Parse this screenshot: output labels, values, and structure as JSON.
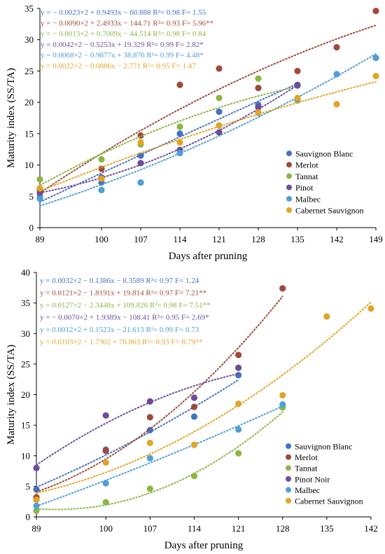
{
  "chart_data": [
    {
      "type": "scatter",
      "xlabel": "Days after pruning",
      "ylabel": "Maturity index  (SS/TA)",
      "x_ticks": [
        "89",
        "100",
        "107",
        "114",
        "121",
        "128",
        "135",
        "142",
        "149"
      ],
      "y_ticks": [
        "0",
        "5",
        "10",
        "15",
        "20",
        "25",
        "30",
        "35"
      ],
      "xlim": [
        89,
        149
      ],
      "ylim": [
        0,
        35
      ],
      "legend_position": "right",
      "series": [
        {
          "name": "Sauvignon Blanc",
          "color": "#4472C4",
          "equation": "y = − 0.0023×2 + 0.9493x − 60.888 R²= 0.98 F= 1.55",
          "trend_end": 135,
          "points": [
            [
              89,
              4.8
            ],
            [
              100,
              7.2
            ],
            [
              107,
              11.5
            ],
            [
              114,
              15.0
            ],
            [
              121,
              18.5
            ],
            [
              128,
              19.6
            ],
            [
              135,
              22.8
            ]
          ]
        },
        {
          "name": "Merlot",
          "color": "#9E4A3A",
          "equation": "y = − 0.0090×2 + 2.4933x − 144.71 R²= 0.93 F= 5.96**",
          "trend_end": 149,
          "points": [
            [
              89,
              6.0
            ],
            [
              100,
              9.4
            ],
            [
              107,
              14.7
            ],
            [
              114,
              22.8
            ],
            [
              121,
              25.4
            ],
            [
              128,
              22.3
            ],
            [
              135,
              25.0
            ],
            [
              142,
              28.8
            ],
            [
              149,
              34.6
            ]
          ]
        },
        {
          "name": "Tannat",
          "color": "#8DB543",
          "equation": "y = − 0.0013×2 + 0.7009x − 44.514 R²= 0.98 F= 0.84",
          "trend_end": 135,
          "points": [
            [
              89,
              7.7
            ],
            [
              100,
              10.9
            ],
            [
              107,
              13.3
            ],
            [
              114,
              16.1
            ],
            [
              121,
              20.7
            ],
            [
              128,
              23.8
            ],
            [
              135,
              20.3
            ]
          ]
        },
        {
          "name": "Pinot",
          "color": "#6F4C9B",
          "equation": "y = 0.0042×2 − 0.5253x + 19.329 R²= 0.99 F= 2.82*",
          "trend_end": 135,
          "points": [
            [
              89,
              5.5
            ],
            [
              100,
              8.0
            ],
            [
              107,
              10.3
            ],
            [
              114,
              12.4
            ],
            [
              121,
              15.2
            ],
            [
              128,
              19.2
            ],
            [
              135,
              22.7
            ]
          ]
        },
        {
          "name": "Malbec",
          "color": "#4E9FD6",
          "equation": "y = 0.0068×2 − 0.9877x + 38.876 R²= 0.99 F= 4.48*",
          "trend_end": 149,
          "points": [
            [
              89,
              4.6
            ],
            [
              100,
              6.0
            ],
            [
              107,
              7.2
            ],
            [
              114,
              11.9
            ],
            [
              121,
              16.3
            ],
            [
              128,
              18.3
            ],
            [
              135,
              20.5
            ],
            [
              142,
              24.5
            ],
            [
              149,
              27.1
            ]
          ]
        },
        {
          "name": "Cabernet Sauvignon",
          "color": "#E0A526",
          "equation": "y = 0.0022×2 − 0.0886x − 2.771 R²= 0.95 F= 1.47",
          "trend_end": 149,
          "points": [
            [
              89,
              6.3
            ],
            [
              100,
              7.8
            ],
            [
              107,
              13.6
            ],
            [
              114,
              13.6
            ],
            [
              121,
              16.3
            ],
            [
              128,
              18.4
            ],
            [
              135,
              20.7
            ],
            [
              142,
              19.7
            ],
            [
              149,
              24.2
            ]
          ]
        }
      ]
    },
    {
      "type": "scatter",
      "xlabel": "Days after pruning",
      "ylabel": "Maturity index  (SS/TA)",
      "x_ticks": [
        "89",
        "100",
        "107",
        "114",
        "121",
        "128",
        "135",
        "142"
      ],
      "y_ticks": [
        "0",
        "5",
        "10",
        "15",
        "20",
        "25",
        "30",
        "35",
        "40"
      ],
      "xlim": [
        89,
        142
      ],
      "ylim": [
        0,
        40
      ],
      "legend_position": "right",
      "series": [
        {
          "name": "Sauvignon Blanc",
          "color": "#4472C4",
          "equation": "y = 0.0032×2 − 0.1386x − 8.3589 R²= 0.97 F= 1.24",
          "trend_end": 121,
          "points": [
            [
              89,
              4.5
            ],
            [
              100,
              11.0
            ],
            [
              107,
              14.2
            ],
            [
              114,
              16.4
            ],
            [
              121,
              23.2
            ]
          ]
        },
        {
          "name": "Merlot",
          "color": "#9E4A3A",
          "equation": "y = 0.0121×2 − 1.8191x + 19.814 R²= 0.97 F= 7.21**",
          "trend_end": 128,
          "points": [
            [
              89,
              3.2
            ],
            [
              100,
              10.8
            ],
            [
              107,
              16.3
            ],
            [
              114,
              18.0
            ],
            [
              121,
              26.5
            ],
            [
              128,
              37.4
            ]
          ]
        },
        {
          "name": "Tannat",
          "color": "#8DB543",
          "equation": "y = 0.0127×2 − 2.3448x + 109.826 R²= 0.98 F= 7.51**",
          "trend_end": 128,
          "points": [
            [
              89,
              1.0
            ],
            [
              100,
              2.4
            ],
            [
              107,
              4.6
            ],
            [
              114,
              6.7
            ],
            [
              121,
              10.4
            ],
            [
              128,
              17.9
            ]
          ]
        },
        {
          "name": "Pinot Noir",
          "color": "#6F4C9B",
          "equation": "y = − 0.0070×2 + 1.9389x − 108.41 R²= 0.95 F= 2.69*",
          "trend_end": 121,
          "points": [
            [
              89,
              8.0
            ],
            [
              100,
              16.6
            ],
            [
              107,
              18.9
            ],
            [
              114,
              19.5
            ],
            [
              121,
              24.4
            ]
          ]
        },
        {
          "name": "Malbec",
          "color": "#4E9FD6",
          "equation": "y = 0.0012×2 + 0.1523x − 21.613 R²= 0.99 F= 0.73",
          "trend_end": 128,
          "points": [
            [
              89,
              1.8
            ],
            [
              100,
              5.5
            ],
            [
              107,
              9.6
            ],
            [
              114,
              11.8
            ],
            [
              121,
              14.3
            ],
            [
              128,
              18.4
            ]
          ]
        },
        {
          "name": "Cabernet Sauvignon",
          "color": "#E0A526",
          "equation": "y = 0.0103×2 − 1.7302 + 76.863 R²= 0.93 F= 8.79**",
          "trend_end": 142,
          "points": [
            [
              89,
              2.8
            ],
            [
              100,
              8.9
            ],
            [
              107,
              12.1
            ],
            [
              114,
              11.8
            ],
            [
              121,
              18.5
            ],
            [
              128,
              19.9
            ],
            [
              135,
              32.8
            ],
            [
              142,
              34.1
            ]
          ]
        }
      ]
    }
  ]
}
